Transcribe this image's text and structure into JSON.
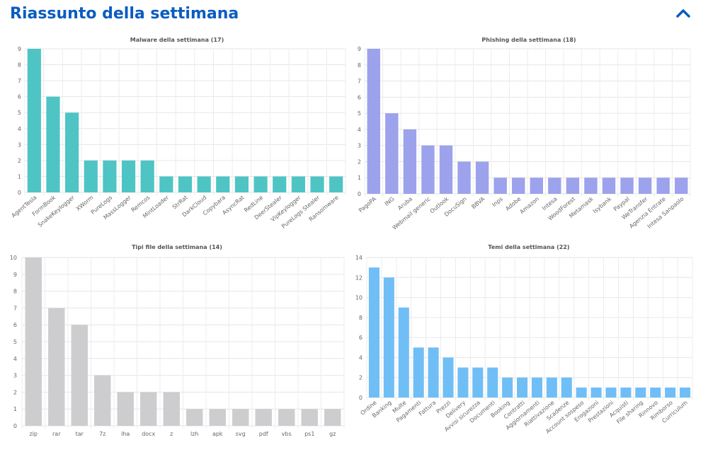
{
  "header": {
    "title": "Riassunto della settimana",
    "collapse_icon": "chevron-up-icon",
    "accent_color": "#0b5cc1"
  },
  "chart_data": [
    {
      "type": "bar",
      "title": "Malware della settimana (17)",
      "color": "#4fc4c4",
      "ylim": [
        0,
        9
      ],
      "yticks": [
        0,
        1,
        2,
        3,
        4,
        5,
        6,
        7,
        8,
        9
      ],
      "grid": true,
      "categories": [
        "AgentTesla",
        "FormBook",
        "SnakeKeylogger",
        "XWorm",
        "PureLogs",
        "MassLogger",
        "Remcos",
        "MintLoader",
        "StrRat",
        "DarkCloud",
        "Copybara",
        "AsyncRat",
        "RedLine",
        "DeerStealer",
        "VipKeylogger",
        "PureLogs Stealer",
        "Ransomware"
      ],
      "values": [
        9,
        6,
        5,
        2,
        2,
        2,
        2,
        1,
        1,
        1,
        1,
        1,
        1,
        1,
        1,
        1,
        1
      ]
    },
    {
      "type": "bar",
      "title": "Phishing della settimana (18)",
      "color": "#9ca2eb",
      "ylim": [
        0,
        9
      ],
      "yticks": [
        0,
        1,
        2,
        3,
        4,
        5,
        6,
        7,
        8,
        9
      ],
      "grid": true,
      "categories": [
        "PagoPA",
        "ING",
        "Aruba",
        "Webmail generic",
        "Outlook",
        "DocuSign",
        "BBVA",
        "Inps",
        "Adobe",
        "Amazon",
        "Intesa",
        "WoodForest",
        "Metamask",
        "Isybank",
        "Paypal",
        "WeTransfer",
        "Agenzia Entrate",
        "Intesa Sanpaolo"
      ],
      "values": [
        9,
        5,
        4,
        3,
        3,
        2,
        2,
        1,
        1,
        1,
        1,
        1,
        1,
        1,
        1,
        1,
        1,
        1
      ]
    },
    {
      "type": "bar",
      "title": "Tipi file della settimana (14)",
      "color": "#cdcdd0",
      "ylim": [
        0,
        10
      ],
      "yticks": [
        0,
        1,
        2,
        3,
        4,
        5,
        6,
        7,
        8,
        9,
        10
      ],
      "grid": true,
      "categories": [
        "zip",
        "rar",
        "tar",
        "7z",
        "lha",
        "docx",
        "z",
        "lzh",
        "apk",
        "svg",
        "pdf",
        "vbs",
        "ps1",
        "gz"
      ],
      "values": [
        10,
        7,
        6,
        3,
        2,
        2,
        2,
        1,
        1,
        1,
        1,
        1,
        1,
        1
      ]
    },
    {
      "type": "bar",
      "title": "Temi della settimana (22)",
      "color": "#70bef6",
      "ylim": [
        0,
        14
      ],
      "yticks": [
        0,
        2,
        4,
        6,
        8,
        10,
        12,
        14
      ],
      "grid": true,
      "categories": [
        "Ordine",
        "Banking",
        "Multe",
        "Pagamenti",
        "Fattura",
        "Prezzi",
        "Delivery",
        "Avvisi sicurezza",
        "Documenti",
        "Booking",
        "Contratti",
        "Aggiornamenti",
        "Riattivazione",
        "Scadenze",
        "Account sospeso",
        "Erogazioni",
        "Prestazioni",
        "Acquisti",
        "File sharing",
        "Rinnovo",
        "Rimborso",
        "Curriculum"
      ],
      "values": [
        13,
        12,
        9,
        5,
        5,
        4,
        3,
        3,
        3,
        2,
        2,
        2,
        2,
        2,
        1,
        1,
        1,
        1,
        1,
        1,
        1,
        1
      ]
    }
  ]
}
